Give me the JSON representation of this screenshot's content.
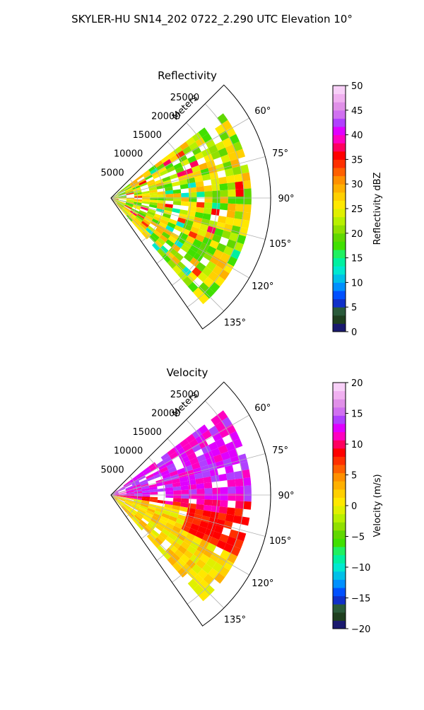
{
  "figure": {
    "title": "SKYLER-HU  SN14_202  0722_2.290 UTC Elevation 10°"
  },
  "chart_data": [
    {
      "type": "heatmap",
      "subtype": "polar-sector",
      "title": "Reflectivity",
      "radial_axis_label": "Meters",
      "radial_ticks": [
        5000,
        10000,
        15000,
        20000,
        25000
      ],
      "radial_tick_labels": [
        "5000",
        "10000",
        "15000",
        "20000",
        "25000"
      ],
      "radial_range": [
        0,
        30000
      ],
      "azimuth_range_deg": [
        45,
        145
      ],
      "azimuth_ticks_deg": [
        60,
        75,
        90,
        105,
        120,
        135
      ],
      "azimuth_tick_labels": [
        "60°",
        "75°",
        "90°",
        "105°",
        "120°",
        "135°"
      ],
      "grid": true,
      "colorbar": {
        "label": "Reflectivity dBZ",
        "range": [
          0,
          50
        ],
        "ticks": [
          0,
          5,
          10,
          15,
          20,
          25,
          30,
          35,
          40,
          45,
          50
        ],
        "tick_labels": [
          "0",
          "5",
          "10",
          "15",
          "20",
          "25",
          "30",
          "35",
          "40",
          "45",
          "50"
        ],
        "colors": [
          "#1a1a6e",
          "#1f3f1f",
          "#2a5a3a",
          "#1030c8",
          "#0050ff",
          "#0090ff",
          "#00c0e8",
          "#00e8d0",
          "#00f0a0",
          "#20f060",
          "#40e000",
          "#60d800",
          "#90e000",
          "#b8f000",
          "#e0f000",
          "#ffe800",
          "#ffd000",
          "#ffb000",
          "#ff9000",
          "#ff6000",
          "#ff3000",
          "#ff0000",
          "#ff0060",
          "#ff00c0",
          "#e000ff",
          "#b040ff",
          "#d070f0",
          "#e090e8",
          "#f0b0f0",
          "#f8d0f8"
        ]
      }
    },
    {
      "type": "heatmap",
      "subtype": "polar-sector",
      "title": "Velocity",
      "radial_axis_label": "Meters",
      "radial_ticks": [
        5000,
        10000,
        15000,
        20000,
        25000
      ],
      "radial_tick_labels": [
        "5000",
        "10000",
        "15000",
        "20000",
        "25000"
      ],
      "radial_range": [
        0,
        30000
      ],
      "azimuth_range_deg": [
        45,
        145
      ],
      "azimuth_ticks_deg": [
        60,
        75,
        90,
        105,
        120,
        135
      ],
      "azimuth_tick_labels": [
        "60°",
        "75°",
        "90°",
        "105°",
        "120°",
        "135°"
      ],
      "grid": true,
      "colorbar": {
        "label": "Velocity (m/s)",
        "range": [
          -20,
          20
        ],
        "ticks": [
          -20,
          -15,
          -10,
          -5,
          0,
          5,
          10,
          15,
          20
        ],
        "tick_labels": [
          "−20",
          "−15",
          "−10",
          "−5",
          "0",
          "5",
          "10",
          "15",
          "20"
        ],
        "colors": [
          "#1a1a6e",
          "#1f3f1f",
          "#2a5a3a",
          "#1030c8",
          "#0050ff",
          "#0090ff",
          "#00c0e8",
          "#00e8d0",
          "#00f0a0",
          "#20f060",
          "#40e000",
          "#60d800",
          "#90e000",
          "#b8f000",
          "#e0f000",
          "#ffe800",
          "#ffd000",
          "#ffb000",
          "#ff9000",
          "#ff6000",
          "#ff3000",
          "#ff0000",
          "#ff0060",
          "#ff00c0",
          "#e000ff",
          "#b040ff",
          "#d070f0",
          "#e090e8",
          "#f0b0f0",
          "#f8d0f8"
        ]
      }
    }
  ]
}
